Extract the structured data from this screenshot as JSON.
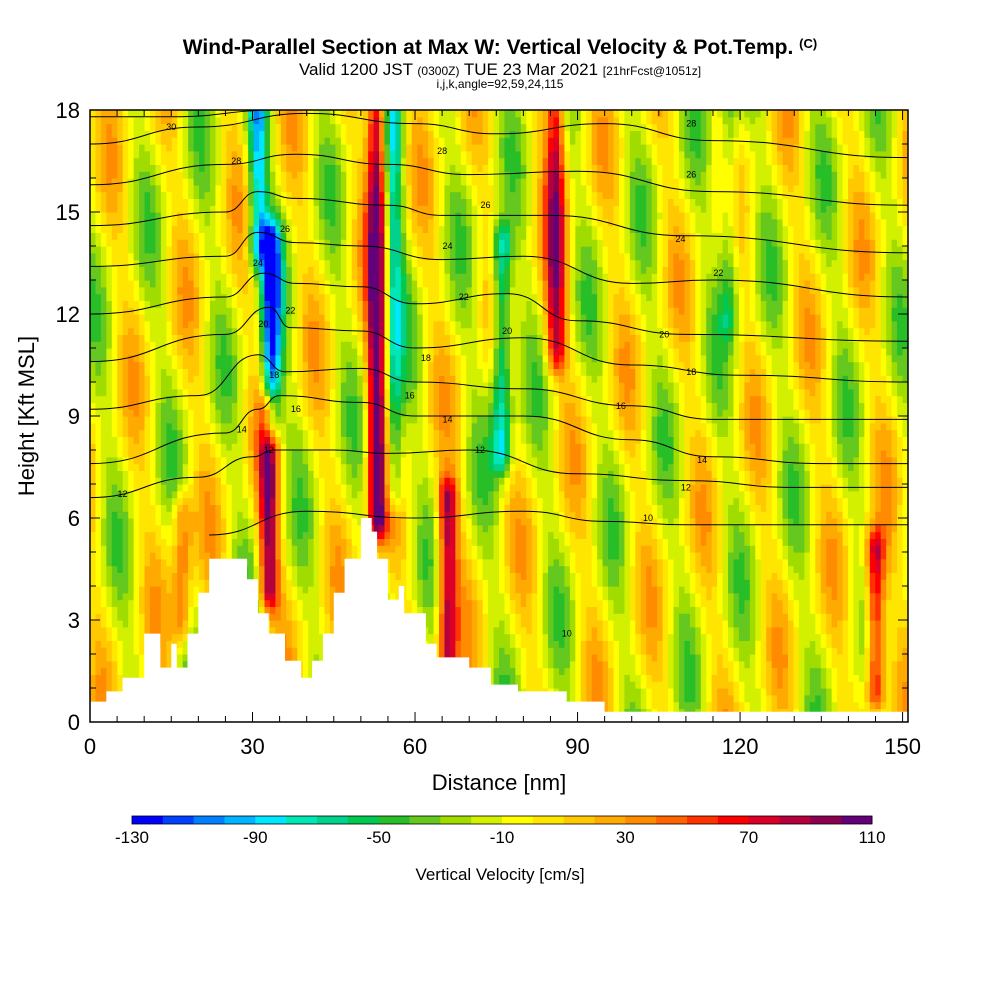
{
  "header": {
    "title": "Wind-Parallel Section at Max W: Vertical Velocity & Pot.Temp.",
    "copyright": "(C)",
    "subtitle_a": "Valid 1200 JST",
    "subtitle_b": "(0300Z)",
    "subtitle_c": "TUE 23 Mar 2021",
    "subtitle_d": "[21hrFcst@1051z]",
    "params": "i,j,k,angle=92,59,24,115"
  },
  "chart_data": {
    "type": "heatmap",
    "xlabel": "Distance [nm]",
    "ylabel": "Height [Kft MSL]",
    "xlim": [
      0,
      151
    ],
    "ylim": [
      0,
      18
    ],
    "x_ticks": [
      0,
      30,
      60,
      90,
      120,
      150
    ],
    "y_ticks": [
      0,
      3,
      6,
      9,
      12,
      15,
      18
    ],
    "colorbar": {
      "label": "Vertical Velocity [cm/s]",
      "tick_labels": [
        -130,
        -90,
        -50,
        -10,
        30,
        70,
        110
      ],
      "colors": [
        "#0000ff",
        "#0040ff",
        "#0080ff",
        "#00b4ff",
        "#00e6ff",
        "#00e6b4",
        "#00d28c",
        "#00c850",
        "#28be28",
        "#64c81e",
        "#a0dc00",
        "#d2f000",
        "#ffff00",
        "#ffe600",
        "#ffc800",
        "#ffaa00",
        "#ff8c00",
        "#ff6400",
        "#ff3200",
        "#ff0000",
        "#dc0028",
        "#b4003c",
        "#8c0050",
        "#640078"
      ]
    },
    "background_velocity_cm_s": -5,
    "updrafts_downdrafts": [
      {
        "x": 33,
        "z_bottom": 4,
        "z_top": 9,
        "w": 90
      },
      {
        "x": 33.5,
        "z_bottom": 9,
        "z_top": 14,
        "w": -110
      },
      {
        "x": 31,
        "z_bottom": 14,
        "z_top": 18,
        "w": -80
      },
      {
        "x": 53,
        "z_bottom": 6,
        "z_top": 18,
        "w": 110
      },
      {
        "x": 56,
        "z_bottom": 7,
        "z_top": 18,
        "w": -60
      },
      {
        "x": 66,
        "z_bottom": 2,
        "z_top": 6.5,
        "w": 90
      },
      {
        "x": 76,
        "z_bottom": 8,
        "z_top": 14,
        "w": -80
      },
      {
        "x": 86,
        "z_bottom": 11,
        "z_top": 18,
        "w": 80
      },
      {
        "x": 118,
        "z_bottom": 12,
        "z_top": 18,
        "w": -40
      },
      {
        "x": 145,
        "z_bottom": 1,
        "z_top": 5,
        "w": 90
      },
      {
        "x": 17,
        "z_bottom": 3,
        "z_top": 6,
        "w": 50
      }
    ],
    "terrain_kft": [
      [
        0,
        0.6
      ],
      [
        3,
        0.6
      ],
      [
        3,
        0.9
      ],
      [
        6,
        0.9
      ],
      [
        6,
        1.3
      ],
      [
        10,
        1.3
      ],
      [
        10,
        2.6
      ],
      [
        13,
        2.6
      ],
      [
        13,
        1.6
      ],
      [
        15,
        1.6
      ],
      [
        15,
        2.3
      ],
      [
        16,
        2.3
      ],
      [
        16,
        1.6
      ],
      [
        18,
        1.6
      ],
      [
        18,
        2.6
      ],
      [
        20,
        2.6
      ],
      [
        20,
        3.8
      ],
      [
        22,
        3.8
      ],
      [
        22,
        4.8
      ],
      [
        29,
        4.8
      ],
      [
        29,
        4.2
      ],
      [
        31,
        4.2
      ],
      [
        31,
        3.2
      ],
      [
        33,
        3.2
      ],
      [
        33,
        2.6
      ],
      [
        36,
        2.6
      ],
      [
        36,
        1.8
      ],
      [
        39,
        1.8
      ],
      [
        39,
        1.3
      ],
      [
        41,
        1.3
      ],
      [
        41,
        1.8
      ],
      [
        43,
        1.8
      ],
      [
        43,
        2.6
      ],
      [
        45,
        2.6
      ],
      [
        45,
        3.8
      ],
      [
        47,
        3.8
      ],
      [
        47,
        4.8
      ],
      [
        50,
        4.8
      ],
      [
        50,
        6.0
      ],
      [
        52,
        6.0
      ],
      [
        52,
        5.6
      ],
      [
        53,
        5.6
      ],
      [
        53,
        4.8
      ],
      [
        55,
        4.8
      ],
      [
        55,
        3.6
      ],
      [
        57,
        3.6
      ],
      [
        57,
        4.0
      ],
      [
        58,
        4.0
      ],
      [
        58,
        3.2
      ],
      [
        62,
        3.2
      ],
      [
        62,
        2.3
      ],
      [
        64,
        2.3
      ],
      [
        64,
        1.9
      ],
      [
        70,
        1.9
      ],
      [
        70,
        1.6
      ],
      [
        74,
        1.6
      ],
      [
        74,
        1.1
      ],
      [
        79,
        1.1
      ],
      [
        79,
        0.9
      ],
      [
        88,
        0.9
      ],
      [
        88,
        0.6
      ],
      [
        95,
        0.6
      ],
      [
        95,
        0.3
      ],
      [
        151,
        0.3
      ],
      [
        151,
        0
      ]
    ],
    "isentropes": [
      {
        "theta": 10,
        "label": "10",
        "anchors": [
          [
            22,
            5.5
          ],
          [
            40,
            6.2
          ],
          [
            60,
            6.0
          ],
          [
            80,
            6.2
          ],
          [
            95,
            5.9
          ],
          [
            110,
            5.8
          ],
          [
            130,
            5.8
          ],
          [
            151,
            5.8
          ]
        ]
      },
      {
        "theta": 12,
        "label": "12",
        "anchors": [
          [
            0,
            6.6
          ],
          [
            20,
            7.2
          ],
          [
            30,
            7.8
          ],
          [
            34,
            8.0
          ],
          [
            45,
            8.0
          ],
          [
            55,
            7.9
          ],
          [
            70,
            8.0
          ],
          [
            90,
            7.3
          ],
          [
            110,
            7.1
          ],
          [
            130,
            6.9
          ],
          [
            151,
            6.9
          ]
        ]
      },
      {
        "theta": 14,
        "label": "14",
        "anchors": [
          [
            0,
            7.6
          ],
          [
            25,
            8.5
          ],
          [
            31,
            9.2
          ],
          [
            35,
            9.6
          ],
          [
            50,
            9.4
          ],
          [
            60,
            9.0
          ],
          [
            80,
            9.0
          ],
          [
            100,
            8.3
          ],
          [
            115,
            7.8
          ],
          [
            135,
            7.6
          ],
          [
            151,
            7.6
          ]
        ]
      },
      {
        "theta": 16,
        "label": "16",
        "anchors": [
          [
            0,
            9.2
          ],
          [
            20,
            9.6
          ],
          [
            31,
            10.8
          ],
          [
            36,
            10.3
          ],
          [
            50,
            10.4
          ],
          [
            60,
            10.0
          ],
          [
            80,
            9.8
          ],
          [
            100,
            9.3
          ],
          [
            115,
            8.9
          ],
          [
            151,
            8.9
          ]
        ]
      },
      {
        "theta": 18,
        "label": "18",
        "anchors": [
          [
            0,
            10.6
          ],
          [
            25,
            11.4
          ],
          [
            33,
            12.2
          ],
          [
            37,
            11.6
          ],
          [
            50,
            11.5
          ],
          [
            60,
            11.0
          ],
          [
            80,
            11.3
          ],
          [
            100,
            10.5
          ],
          [
            120,
            10.2
          ],
          [
            151,
            10.0
          ]
        ]
      },
      {
        "theta": 20,
        "label": "20",
        "anchors": [
          [
            0,
            12.0
          ],
          [
            25,
            12.5
          ],
          [
            32,
            13.2
          ],
          [
            38,
            12.9
          ],
          [
            50,
            12.8
          ],
          [
            60,
            12.3
          ],
          [
            77,
            12.6
          ],
          [
            90,
            11.8
          ],
          [
            110,
            11.4
          ],
          [
            151,
            11.2
          ]
        ]
      },
      {
        "theta": 22,
        "label": "22",
        "anchors": [
          [
            0,
            13.4
          ],
          [
            25,
            13.7
          ],
          [
            31,
            14.4
          ],
          [
            38,
            14.1
          ],
          [
            50,
            14.0
          ],
          [
            65,
            13.6
          ],
          [
            80,
            13.7
          ],
          [
            100,
            12.9
          ],
          [
            115,
            13.0
          ],
          [
            151,
            12.5
          ]
        ]
      },
      {
        "theta": 24,
        "label": "24",
        "anchors": [
          [
            0,
            14.6
          ],
          [
            25,
            15.0
          ],
          [
            31,
            15.6
          ],
          [
            38,
            15.4
          ],
          [
            55,
            15.2
          ],
          [
            65,
            14.9
          ],
          [
            85,
            14.9
          ],
          [
            110,
            14.3
          ],
          [
            151,
            13.8
          ]
        ]
      },
      {
        "theta": 26,
        "label": "26",
        "anchors": [
          [
            0,
            15.8
          ],
          [
            25,
            16.4
          ],
          [
            38,
            16.7
          ],
          [
            55,
            16.4
          ],
          [
            70,
            16.1
          ],
          [
            90,
            16.2
          ],
          [
            115,
            15.6
          ],
          [
            151,
            15.2
          ]
        ]
      },
      {
        "theta": 28,
        "label": "28",
        "anchors": [
          [
            0,
            17.0
          ],
          [
            20,
            17.5
          ],
          [
            40,
            17.9
          ],
          [
            60,
            17.6
          ],
          [
            75,
            17.3
          ],
          [
            95,
            17.6
          ],
          [
            115,
            17.1
          ],
          [
            151,
            16.6
          ]
        ]
      },
      {
        "theta": 30,
        "label": "30",
        "anchors": [
          [
            0,
            17.8
          ],
          [
            15,
            17.8
          ],
          [
            35,
            18.0
          ],
          [
            151,
            18.0
          ]
        ]
      }
    ],
    "contour_labels": [
      {
        "text": "30",
        "x": 15,
        "y": 17.5
      },
      {
        "text": "28",
        "x": 27,
        "y": 16.5
      },
      {
        "text": "26",
        "x": 36,
        "y": 14.5
      },
      {
        "text": "24",
        "x": 31,
        "y": 13.5
      },
      {
        "text": "22",
        "x": 37,
        "y": 12.1
      },
      {
        "text": "20",
        "x": 32,
        "y": 11.7
      },
      {
        "text": "18",
        "x": 34,
        "y": 10.2
      },
      {
        "text": "16",
        "x": 38,
        "y": 9.2
      },
      {
        "text": "14",
        "x": 28,
        "y": 8.6
      },
      {
        "text": "12",
        "x": 33,
        "y": 8.0
      },
      {
        "text": "12",
        "x": 6,
        "y": 6.7
      },
      {
        "text": "28",
        "x": 65,
        "y": 16.8
      },
      {
        "text": "26",
        "x": 73,
        "y": 15.2
      },
      {
        "text": "24",
        "x": 66,
        "y": 14.0
      },
      {
        "text": "22",
        "x": 69,
        "y": 12.5
      },
      {
        "text": "20",
        "x": 77,
        "y": 11.5
      },
      {
        "text": "18",
        "x": 62,
        "y": 10.7
      },
      {
        "text": "16",
        "x": 59,
        "y": 9.6
      },
      {
        "text": "14",
        "x": 66,
        "y": 8.9
      },
      {
        "text": "12",
        "x": 72,
        "y": 8.0
      },
      {
        "text": "28",
        "x": 111,
        "y": 17.6
      },
      {
        "text": "26",
        "x": 111,
        "y": 16.1
      },
      {
        "text": "24",
        "x": 109,
        "y": 14.2
      },
      {
        "text": "22",
        "x": 116,
        "y": 13.2
      },
      {
        "text": "20",
        "x": 106,
        "y": 11.4
      },
      {
        "text": "18",
        "x": 111,
        "y": 10.3
      },
      {
        "text": "16",
        "x": 98,
        "y": 9.3
      },
      {
        "text": "14",
        "x": 113,
        "y": 7.7
      },
      {
        "text": "12",
        "x": 110,
        "y": 6.9
      },
      {
        "text": "10",
        "x": 103,
        "y": 6.0
      },
      {
        "text": "10",
        "x": 88,
        "y": 2.6
      }
    ]
  }
}
